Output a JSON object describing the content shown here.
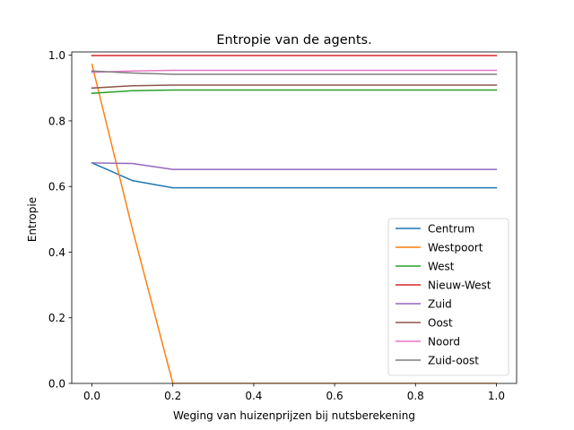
{
  "chart_data": {
    "type": "line",
    "title": "Entropie van de agents.",
    "xlabel": "Weging van huizenprijzen bij nutsberekening",
    "ylabel": "Entropie",
    "xlim": [
      -0.05,
      1.05
    ],
    "ylim": [
      0.0,
      1.01
    ],
    "xticks": [
      "0.0",
      "0.2",
      "0.4",
      "0.6",
      "0.8",
      "1.0"
    ],
    "yticks": [
      "0.0",
      "0.2",
      "0.4",
      "0.6",
      "0.8",
      "1.0"
    ],
    "grid": false,
    "legend_position": "lower right",
    "x": [
      0.0,
      0.1,
      0.2,
      0.3,
      0.4,
      0.5,
      0.6,
      0.7,
      0.8,
      0.9,
      1.0
    ],
    "series": [
      {
        "name": "Centrum",
        "color": "#1f77b4",
        "values": [
          0.672,
          0.618,
          0.596,
          0.596,
          0.596,
          0.596,
          0.596,
          0.596,
          0.596,
          0.596,
          0.596
        ]
      },
      {
        "name": "Westpoort",
        "color": "#ff7f0e",
        "values": [
          0.972,
          0.47,
          0.0,
          0.0,
          0.0,
          0.0,
          0.0,
          0.0,
          0.0,
          0.0,
          0.0
        ]
      },
      {
        "name": "West",
        "color": "#2ca02c",
        "values": [
          0.884,
          0.892,
          0.894,
          0.894,
          0.894,
          0.894,
          0.894,
          0.894,
          0.894,
          0.894,
          0.894
        ]
      },
      {
        "name": "Nieuw-West",
        "color": "#d62728",
        "values": [
          0.999,
          0.999,
          0.999,
          0.999,
          0.999,
          0.999,
          0.999,
          0.999,
          0.999,
          0.999,
          0.999
        ]
      },
      {
        "name": "Zuid",
        "color": "#9467bd",
        "values": [
          0.672,
          0.67,
          0.652,
          0.652,
          0.652,
          0.652,
          0.652,
          0.652,
          0.652,
          0.652,
          0.652
        ]
      },
      {
        "name": "Oost",
        "color": "#8c564b",
        "values": [
          0.9,
          0.907,
          0.909,
          0.909,
          0.909,
          0.909,
          0.909,
          0.909,
          0.909,
          0.909,
          0.909
        ]
      },
      {
        "name": "Noord",
        "color": "#e377c2",
        "values": [
          0.948,
          0.952,
          0.954,
          0.954,
          0.954,
          0.954,
          0.954,
          0.954,
          0.954,
          0.954,
          0.954
        ]
      },
      {
        "name": "Zuid-oost",
        "color": "#7f7f7f",
        "values": [
          0.952,
          0.946,
          0.942,
          0.942,
          0.942,
          0.942,
          0.942,
          0.942,
          0.942,
          0.942,
          0.942
        ]
      }
    ]
  }
}
